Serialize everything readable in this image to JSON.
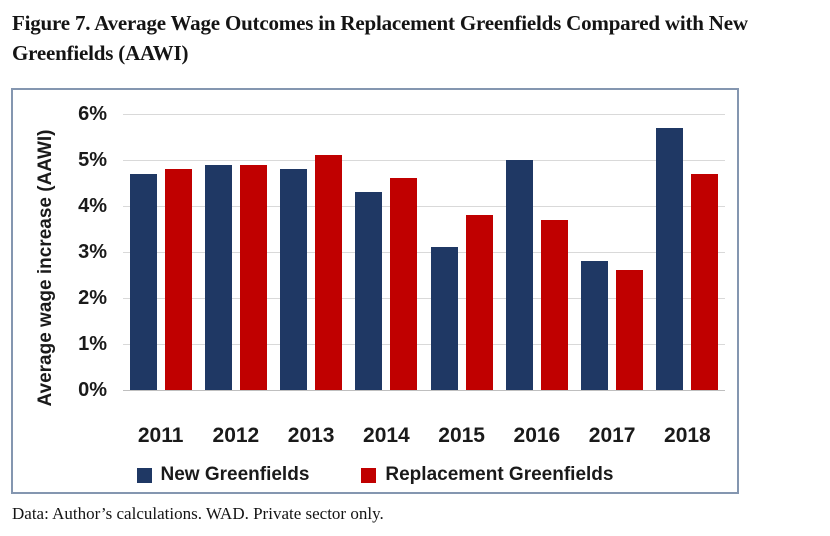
{
  "figure": {
    "title": "Figure 7. Average Wage Outcomes in Replacement Greenfields Compared with New Greenfields (AAWI)",
    "footnote": "Data: Author’s calculations. WAD. Private sector only."
  },
  "colors": {
    "panel_border": "#8496B0",
    "gridline": "#d9d9d9",
    "axis_line": "#bfbfbf",
    "text": "#1a1a1a"
  },
  "chart_data": {
    "type": "bar",
    "title": "",
    "xlabel": "",
    "ylabel": "Average wage increase (AAWI)",
    "ylim": [
      0,
      6
    ],
    "grid": true,
    "legend_position": "bottom",
    "yticks": [
      "6%",
      "5%",
      "4%",
      "3%",
      "2%",
      "1%",
      "0%"
    ],
    "categories": [
      "2011",
      "2012",
      "2013",
      "2014",
      "2015",
      "2016",
      "2017",
      "2018"
    ],
    "series": [
      {
        "name": "New Greenfields",
        "color": "#1F3864",
        "values": [
          4.7,
          4.9,
          4.8,
          4.3,
          3.1,
          5.0,
          2.8,
          5.7
        ]
      },
      {
        "name": "Replacement Greenfields",
        "color": "#C00000",
        "values": [
          4.8,
          4.9,
          5.1,
          4.6,
          3.8,
          3.7,
          2.6,
          4.7
        ]
      }
    ]
  }
}
